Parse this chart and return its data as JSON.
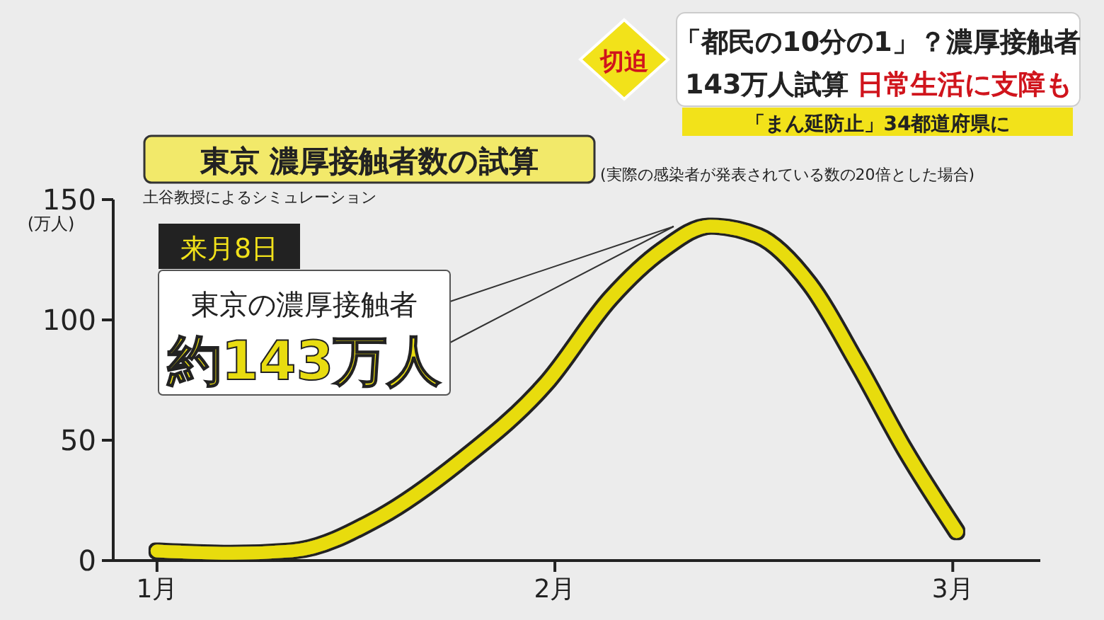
{
  "chart_data": {
    "type": "line",
    "title": "東京 濃厚接触者数の試算",
    "subtitle": "(実際の感染者が発表されている数の20倍とした場合)",
    "ylabel": "(万人)",
    "annotations": [
      "切迫",
      "「都民の10分の1」？濃厚接触者",
      "143万人試算",
      "日常生活に支障も",
      "「まん延防止」34都道府県に",
      "土谷教授によるシミュレーション",
      "来月8日",
      "東京の濃厚接触者",
      "約143万人"
    ],
    "x": [
      1.0,
      1.19,
      1.34,
      1.56,
      1.76,
      1.98,
      2.14,
      2.27,
      2.39,
      2.51,
      2.64,
      2.76,
      2.88,
      3.01
    ],
    "series": [
      {
        "color": "#e8dc10",
        "values": [
          4,
          3,
          4,
          18,
          41,
          74,
          109,
          129,
          139,
          135,
          115,
          82,
          46,
          12
        ]
      }
    ],
    "xlim": [
      0.89,
      3.22
    ],
    "xticks": [
      {
        "value": 1,
        "label": "1月"
      },
      {
        "value": 2,
        "label": "2月"
      },
      {
        "value": 3,
        "label": "3月"
      }
    ],
    "ylim": [
      0,
      150
    ],
    "yticks": [
      0,
      50,
      100,
      150
    ],
    "grid": false,
    "line_style": "solid"
  }
}
